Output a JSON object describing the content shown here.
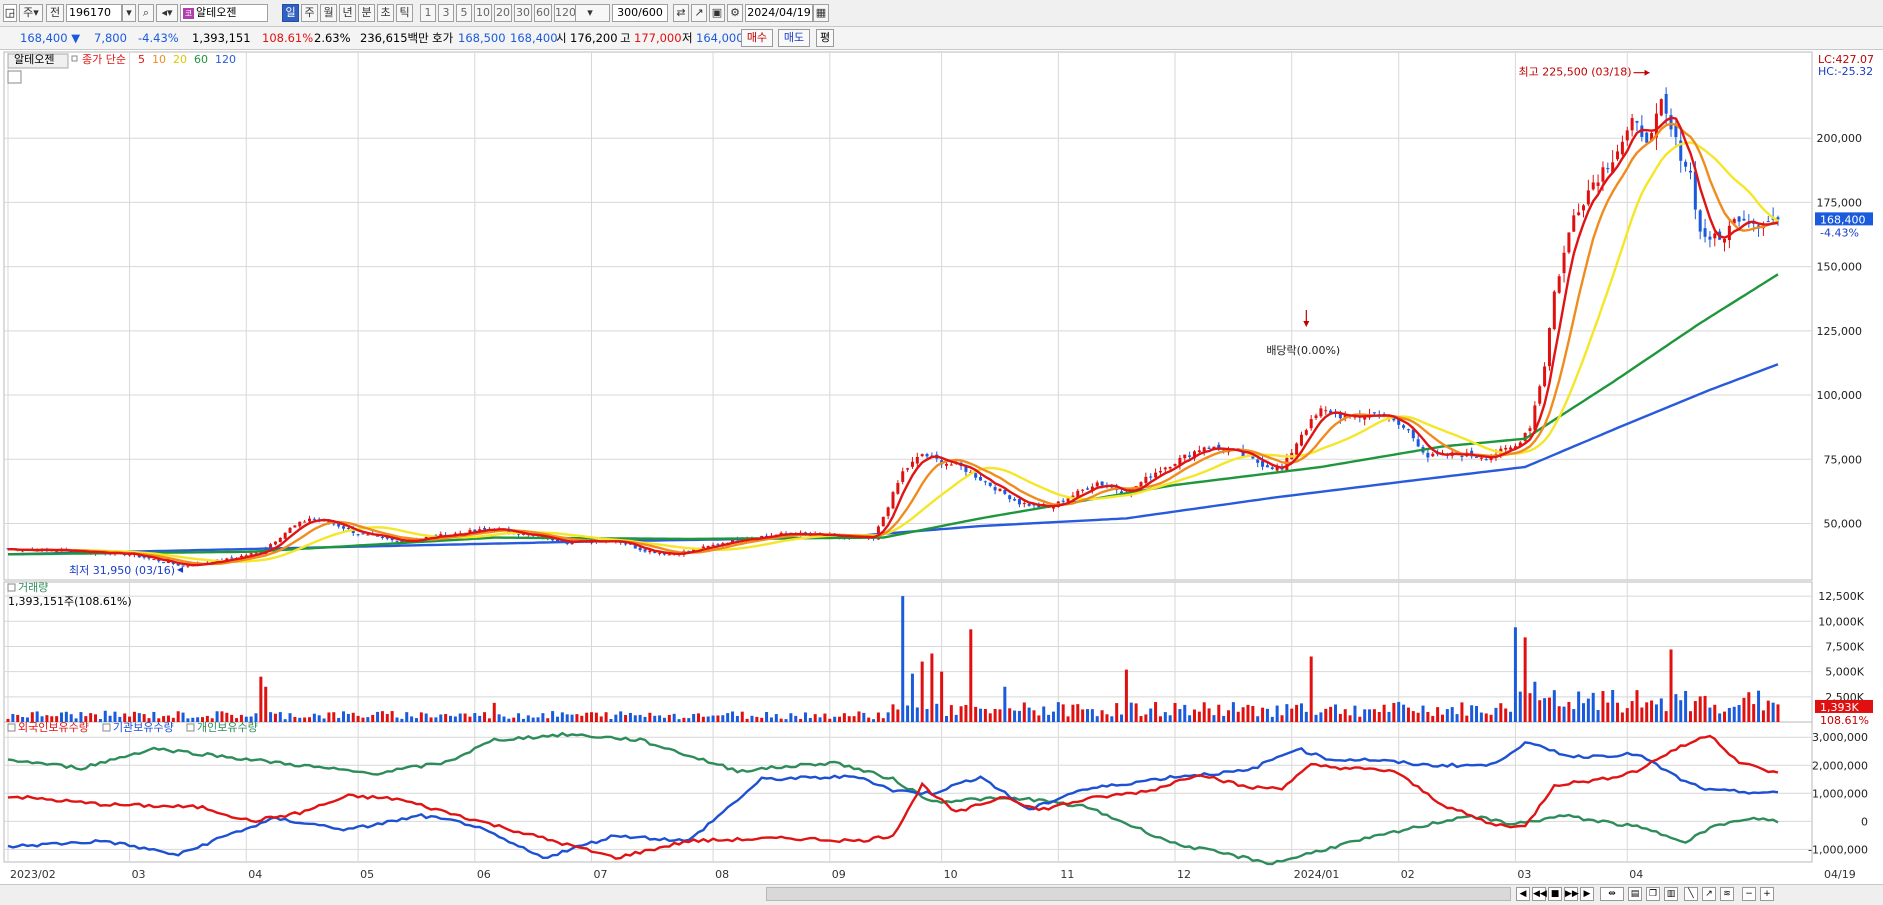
{
  "toolbar": {
    "period_button": "주",
    "prev_label": "전",
    "code": "196170",
    "stock_name": "알테오젠",
    "periods": [
      "일",
      "주",
      "월",
      "년",
      "분",
      "초",
      "틱"
    ],
    "active_period": "일",
    "multipliers": [
      "1",
      "3",
      "5",
      "10",
      "20",
      "30",
      "60",
      "120"
    ],
    "count": "300/600",
    "date": "2024/04/19"
  },
  "quote": {
    "price": "168,400",
    "change": "7,800",
    "change_pct": "-4.43%",
    "volume": "1,393,151",
    "volume_ratio": "108.61%",
    "turnover": "2.63%",
    "amount": "236,615백만",
    "ask_label": "호가",
    "ask": "168,500",
    "bid": "168,400",
    "open_label": "시",
    "open": "176,200",
    "high_label": "고",
    "high": "177,000",
    "low_label": "저",
    "low": "164,000",
    "buy_label": "매수",
    "sell_label": "매도",
    "eval_label": "평"
  },
  "colors": {
    "up": "#e01010",
    "down": "#1a5adc",
    "ma5": "#e01414",
    "ma10": "#f08c1e",
    "ma20": "#f5e628",
    "ma60": "#1e963c",
    "ma120": "#285adc",
    "foreign": "#e01414",
    "institution": "#1e50d2",
    "individual": "#2d8c5a",
    "grid": "#d8d8d8"
  },
  "chart_data": [
    {
      "type": "candlestick",
      "title": "알테오젠",
      "legend": {
        "series_label": "종가 단순",
        "periods": [
          "5",
          "10",
          "20",
          "60",
          "120"
        ]
      },
      "ylim": [
        28000,
        232000
      ],
      "yticks": [
        "50,000",
        "75,000",
        "100,000",
        "125,000",
        "150,000",
        "175,000",
        "200,000"
      ],
      "ytick_values": [
        50000,
        75000,
        100000,
        125000,
        150000,
        175000,
        200000
      ],
      "price_label": "168,400",
      "price_change_label": "-4.43%",
      "lc_label": "LC:427.07",
      "hc_label": "HC:-25.32",
      "annotations": {
        "high": "최고 225,500 (03/18)",
        "low": "최저 31,950 (03/16)",
        "dividend": "배당락(0.00%)"
      },
      "x_months": [
        "2023/02",
        "03",
        "04",
        "05",
        "06",
        "07",
        "08",
        "09",
        "10",
        "11",
        "12",
        "2024/01",
        "02",
        "03",
        "04",
        "04/19"
      ],
      "close_keypoints": [
        [
          0,
          40000
        ],
        [
          12,
          39500
        ],
        [
          25,
          38000
        ],
        [
          36,
          33500
        ],
        [
          45,
          36000
        ],
        [
          52,
          39000
        ],
        [
          58,
          48000
        ],
        [
          62,
          52000
        ],
        [
          67,
          50000
        ],
        [
          72,
          46000
        ],
        [
          80,
          43000
        ],
        [
          88,
          45000
        ],
        [
          100,
          48000
        ],
        [
          108,
          45000
        ],
        [
          115,
          43000
        ],
        [
          125,
          43500
        ],
        [
          130,
          40000
        ],
        [
          136,
          38000
        ],
        [
          142,
          40000
        ],
        [
          150,
          44000
        ],
        [
          160,
          46000
        ],
        [
          170,
          45000
        ],
        [
          178,
          44000
        ],
        [
          184,
          70000
        ],
        [
          188,
          77000
        ],
        [
          192,
          74000
        ],
        [
          196,
          72000
        ],
        [
          202,
          65000
        ],
        [
          208,
          58000
        ],
        [
          214,
          56000
        ],
        [
          220,
          62000
        ],
        [
          224,
          66000
        ],
        [
          230,
          62000
        ],
        [
          236,
          70000
        ],
        [
          240,
          74000
        ],
        [
          246,
          80000
        ],
        [
          252,
          78000
        ],
        [
          258,
          73000
        ],
        [
          262,
          71000
        ],
        [
          266,
          85000
        ],
        [
          270,
          94000
        ],
        [
          276,
          91000
        ],
        [
          282,
          93000
        ],
        [
          288,
          86000
        ],
        [
          292,
          76000
        ],
        [
          298,
          77000
        ],
        [
          304,
          76000
        ],
        [
          310,
          80000
        ],
        [
          313,
          88000
        ],
        [
          316,
          112000
        ],
        [
          318,
          140000
        ],
        [
          322,
          170000
        ],
        [
          326,
          183000
        ],
        [
          330,
          193000
        ],
        [
          334,
          205000
        ],
        [
          338,
          200000
        ],
        [
          340,
          213000
        ],
        [
          343,
          198000
        ],
        [
          346,
          186000
        ],
        [
          348,
          163000
        ],
        [
          352,
          160000
        ],
        [
          356,
          170000
        ],
        [
          360,
          167000
        ],
        [
          364,
          168400
        ]
      ],
      "ma60_keypoints": [
        [
          0,
          38000
        ],
        [
          50,
          39000
        ],
        [
          100,
          44500
        ],
        [
          140,
          44000
        ],
        [
          180,
          44500
        ],
        [
          200,
          52000
        ],
        [
          240,
          65000
        ],
        [
          270,
          72000
        ],
        [
          295,
          80000
        ],
        [
          312,
          83000
        ],
        [
          330,
          105000
        ],
        [
          348,
          128000
        ],
        [
          364,
          147000
        ]
      ],
      "ma120_keypoints": [
        [
          0,
          38000
        ],
        [
          60,
          40500
        ],
        [
          120,
          43000
        ],
        [
          170,
          44500
        ],
        [
          200,
          49000
        ],
        [
          230,
          52000
        ],
        [
          260,
          60000
        ],
        [
          290,
          67000
        ],
        [
          312,
          72000
        ],
        [
          332,
          88000
        ],
        [
          350,
          102000
        ],
        [
          364,
          112000
        ]
      ]
    },
    {
      "type": "bar",
      "title": "거래량",
      "value_label": "1,393,151주(108.61%)",
      "ylim": [
        0,
        13500000
      ],
      "yticks": [
        "2,500K",
        "5,000K",
        "7,500K",
        "10,000K",
        "12,500K"
      ],
      "ytick_values": [
        2500000,
        5000000,
        7500000,
        10000000,
        12500000
      ],
      "last_label": "1,393K",
      "last_pct_label": "108.61%",
      "spikes": [
        [
          52,
          4500000
        ],
        [
          53,
          3500000
        ],
        [
          100,
          1900000
        ],
        [
          184,
          12500000
        ],
        [
          186,
          4800000
        ],
        [
          188,
          6000000
        ],
        [
          190,
          6800000
        ],
        [
          192,
          5000000
        ],
        [
          198,
          9200000
        ],
        [
          205,
          3500000
        ],
        [
          230,
          5200000
        ],
        [
          268,
          6500000
        ],
        [
          310,
          9400000
        ],
        [
          312,
          8400000
        ],
        [
          314,
          4000000
        ],
        [
          342,
          7200000
        ]
      ],
      "base": 700000
    },
    {
      "type": "line",
      "legend": [
        "외국인보유수량",
        "기관보유수량",
        "개인보유수량"
      ],
      "ylim": [
        -1450000,
        3400000
      ],
      "yticks": [
        "-1,000,000",
        "0",
        "1,000,000",
        "2,000,000",
        "3,000,000"
      ],
      "ytick_values": [
        -1000000,
        0,
        1000000,
        2000000,
        3000000
      ],
      "foreign_keypoints": [
        [
          0,
          900000
        ],
        [
          20,
          600000
        ],
        [
          40,
          500000
        ],
        [
          50,
          0
        ],
        [
          60,
          300000
        ],
        [
          70,
          900000
        ],
        [
          80,
          800000
        ],
        [
          95,
          100000
        ],
        [
          110,
          -600000
        ],
        [
          125,
          -1300000
        ],
        [
          140,
          -700000
        ],
        [
          160,
          -600000
        ],
        [
          175,
          -700000
        ],
        [
          182,
          -500000
        ],
        [
          188,
          1300000
        ],
        [
          195,
          300000
        ],
        [
          205,
          900000
        ],
        [
          212,
          400000
        ],
        [
          222,
          800000
        ],
        [
          235,
          1100000
        ],
        [
          245,
          1700000
        ],
        [
          255,
          1200000
        ],
        [
          262,
          1200000
        ],
        [
          268,
          2000000
        ],
        [
          275,
          1900000
        ],
        [
          285,
          1800000
        ],
        [
          295,
          600000
        ],
        [
          305,
          -100000
        ],
        [
          312,
          -200000
        ],
        [
          318,
          1300000
        ],
        [
          328,
          1500000
        ],
        [
          335,
          1800000
        ],
        [
          342,
          2500000
        ],
        [
          350,
          3100000
        ],
        [
          356,
          2100000
        ],
        [
          364,
          1700000
        ]
      ],
      "institution_keypoints": [
        [
          0,
          -900000
        ],
        [
          20,
          -700000
        ],
        [
          35,
          -1200000
        ],
        [
          45,
          -500000
        ],
        [
          55,
          100000
        ],
        [
          70,
          -300000
        ],
        [
          85,
          200000
        ],
        [
          95,
          -100000
        ],
        [
          110,
          -1300000
        ],
        [
          125,
          -500000
        ],
        [
          140,
          -700000
        ],
        [
          155,
          1500000
        ],
        [
          175,
          1600000
        ],
        [
          182,
          1100000
        ],
        [
          190,
          1000000
        ],
        [
          200,
          1600000
        ],
        [
          210,
          400000
        ],
        [
          220,
          1100000
        ],
        [
          240,
          1600000
        ],
        [
          255,
          1800000
        ],
        [
          265,
          2600000
        ],
        [
          272,
          2200000
        ],
        [
          280,
          2200000
        ],
        [
          292,
          2000000
        ],
        [
          305,
          2000000
        ],
        [
          312,
          2800000
        ],
        [
          322,
          2300000
        ],
        [
          335,
          2400000
        ],
        [
          345,
          1400000
        ],
        [
          350,
          1100000
        ],
        [
          364,
          1000000
        ]
      ],
      "individual_keypoints": [
        [
          0,
          2200000
        ],
        [
          15,
          1900000
        ],
        [
          30,
          2600000
        ],
        [
          45,
          2300000
        ],
        [
          60,
          2000000
        ],
        [
          75,
          1700000
        ],
        [
          90,
          2100000
        ],
        [
          100,
          2900000
        ],
        [
          115,
          3100000
        ],
        [
          130,
          2900000
        ],
        [
          150,
          1800000
        ],
        [
          170,
          2100000
        ],
        [
          182,
          1500000
        ],
        [
          190,
          700000
        ],
        [
          200,
          800000
        ],
        [
          210,
          800000
        ],
        [
          222,
          500000
        ],
        [
          240,
          -800000
        ],
        [
          260,
          -1500000
        ],
        [
          275,
          -800000
        ],
        [
          290,
          -200000
        ],
        [
          300,
          200000
        ],
        [
          310,
          -100000
        ],
        [
          320,
          200000
        ],
        [
          335,
          -200000
        ],
        [
          345,
          -700000
        ],
        [
          352,
          -100000
        ],
        [
          360,
          100000
        ],
        [
          364,
          0
        ]
      ]
    }
  ]
}
